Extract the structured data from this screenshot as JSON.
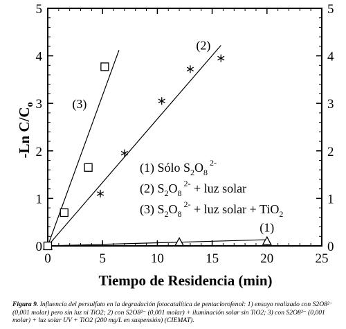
{
  "chart_data": {
    "type": "scatter",
    "xlabel": "Tiempo de Residencia (min)",
    "ylabel_main": "-Ln C/C",
    "ylabel_sub": "o",
    "xlim": [
      0,
      25
    ],
    "ylim": [
      0,
      5
    ],
    "x_ticks": [
      "0",
      "5",
      "10",
      "15",
      "20",
      "25"
    ],
    "y_ticks": [
      "0",
      "1",
      "2",
      "3",
      "4",
      "5"
    ],
    "right_axis_ticks": [
      "0",
      "1",
      "2",
      "3",
      "4",
      "5"
    ],
    "grid": false,
    "legend_position": "center-right",
    "series": [
      {
        "id": "series-1",
        "marker": "triangle",
        "curve_label": "(1)",
        "legend": {
          "num": "(1)",
          "text": "Sólo S",
          "sub1": "2",
          "mid": "O",
          "sub2": "8",
          "sup": "2-",
          "tail": "",
          "sub3": "",
          "end": ""
        },
        "points": [
          [
            0,
            0.0
          ],
          [
            12,
            0.08
          ],
          [
            20,
            0.1
          ]
        ],
        "fit": [
          [
            0,
            0.0
          ],
          [
            20,
            0.13
          ]
        ]
      },
      {
        "id": "series-2",
        "marker": "asterisk",
        "curve_label": "(2)",
        "legend": {
          "num": "(2)",
          "text": "S",
          "sub1": "2",
          "mid": "O",
          "sub2": "8",
          "sup": "2-",
          "tail": " + luz solar",
          "sub3": "",
          "end": ""
        },
        "points": [
          [
            0,
            0.0
          ],
          [
            4.8,
            1.1
          ],
          [
            7,
            1.95
          ],
          [
            10.4,
            3.05
          ],
          [
            13,
            3.72
          ],
          [
            15.8,
            3.95
          ]
        ],
        "fit": [
          [
            0,
            0.0
          ],
          [
            15.8,
            4.22
          ]
        ]
      },
      {
        "id": "series-3",
        "marker": "square",
        "curve_label": "(3)",
        "legend": {
          "num": "(3)",
          "text": "S",
          "sub1": "2",
          "mid": "O",
          "sub2": "8",
          "sup": "2-",
          "tail": " + luz solar + TiO",
          "sub3": "2",
          "end": ""
        },
        "points": [
          [
            0,
            0.0
          ],
          [
            1.5,
            0.7
          ],
          [
            3.7,
            1.65
          ],
          [
            5.2,
            3.77
          ]
        ],
        "fit": [
          [
            0,
            0.0
          ],
          [
            6.5,
            4.12
          ]
        ]
      }
    ]
  },
  "caption": {
    "label": "Figura 9.",
    "text": " Influencia del persulfato en la degradación fotocatalítica de pentaclorofenol: 1) ensayo realizado con S2O8²⁻ (0,001 molar) pero sin luz ni TiO2; 2) con S2O8²⁻ (0,001 molar) + iluminación solar sin TiO2; 3) con S2O8²⁻ (0,001 molar) + luz solar UV + TiO2 (200 mg/L en suspensión) (CIEMAT)."
  }
}
